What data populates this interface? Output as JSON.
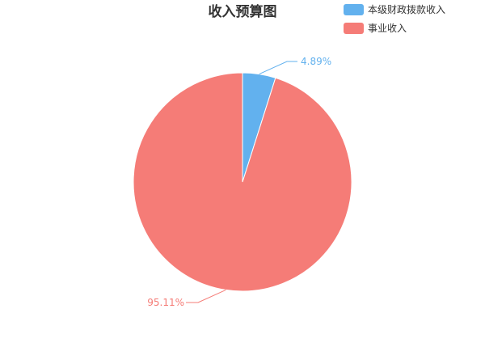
{
  "chart_data": {
    "type": "pie",
    "title": "收入预算图",
    "legend_position": "top-right",
    "slices": [
      {
        "name": "本级财政拨款收入",
        "value": 4.89,
        "label": "4.89%",
        "color": "#62b1ee"
      },
      {
        "name": "事业收入",
        "value": 95.11,
        "label": "95.11%",
        "color": "#f57c77"
      }
    ]
  }
}
